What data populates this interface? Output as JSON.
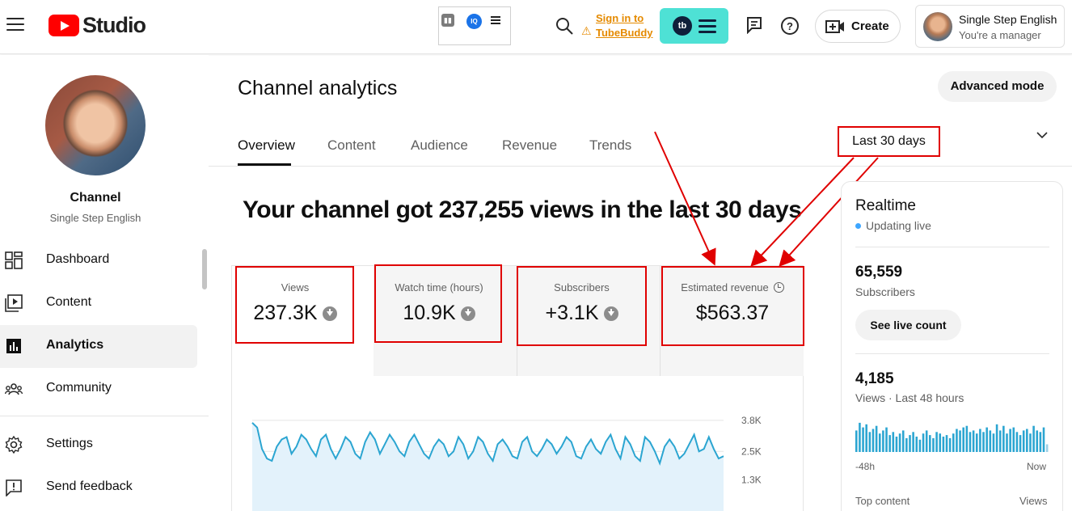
{
  "header": {
    "app_name": "Studio",
    "tubebuddy_sign_line1": "Sign in to",
    "tubebuddy_sign_line2": "TubeBuddy",
    "tubebuddy_logo_text": "tb",
    "extension_badge": "IQ",
    "create_label": "Create",
    "account_name": "Single Step English",
    "account_role": "You're a manager"
  },
  "sidebar": {
    "channel_title": "Channel",
    "channel_name": "Single Step English",
    "items": [
      {
        "label": "Dashboard",
        "icon": "dashboard-icon"
      },
      {
        "label": "Content",
        "icon": "content-icon"
      },
      {
        "label": "Analytics",
        "icon": "analytics-icon",
        "active": true
      },
      {
        "label": "Community",
        "icon": "community-icon"
      }
    ],
    "bottom_items": [
      {
        "label": "Settings",
        "icon": "gear-icon"
      },
      {
        "label": "Send feedback",
        "icon": "feedback-icon"
      }
    ]
  },
  "main": {
    "title": "Channel analytics",
    "advanced_mode": "Advanced mode",
    "tabs": [
      "Overview",
      "Content",
      "Audience",
      "Revenue",
      "Trends"
    ],
    "period": "Last 30 days",
    "headline": "Your channel got 237,255 views in the last 30 days",
    "metrics": [
      {
        "label": "Views",
        "value": "237.3K"
      },
      {
        "label": "Watch time (hours)",
        "value": "10.9K"
      },
      {
        "label": "Subscribers",
        "value": "+3.1K"
      },
      {
        "label": "Estimated revenue",
        "value": "$563.37"
      }
    ]
  },
  "chart_data": {
    "type": "area",
    "yticks": [
      "3.8K",
      "2.5K",
      "1.3K"
    ],
    "ylim": [
      0,
      4000
    ],
    "values": [
      3700,
      3500,
      2600,
      2200,
      2100,
      2700,
      3000,
      3100,
      2400,
      2700,
      3200,
      3000,
      2600,
      2300,
      3000,
      3200,
      2600,
      2200,
      2600,
      3100,
      2900,
      2400,
      2200,
      2900,
      3300,
      3000,
      2400,
      2800,
      3200,
      2900,
      2500,
      2300,
      2900,
      3200,
      2800,
      2400,
      2200,
      2700,
      3000,
      2800,
      2300,
      2500,
      3100,
      2800,
      2200,
      2500,
      3100,
      2900,
      2400,
      2100,
      2800,
      3000,
      2700,
      2300,
      2200,
      2900,
      3100,
      2500,
      2300,
      2600,
      3000,
      2800,
      2400,
      2700,
      3100,
      2900,
      2300,
      2200,
      2700,
      3000,
      2600,
      2400,
      2900,
      3200,
      2600,
      2200,
      3100,
      2800,
      2300,
      2100,
      3100,
      2900,
      2500,
      2000,
      2700,
      3000,
      2700,
      2200,
      2400,
      2800,
      3200,
      2500,
      2600,
      3100,
      2600,
      2200,
      2300
    ]
  },
  "realtime": {
    "title": "Realtime",
    "status": "Updating live",
    "subscribers_value": "65,559",
    "subscribers_label": "Subscribers",
    "live_count_button": "See live count",
    "views_value": "4,185",
    "views_label": "Views · Last 48 hours",
    "axis_start": "-48h",
    "axis_end": "Now",
    "top_content": "Top content",
    "top_content_col": "Views",
    "bars": [
      70,
      95,
      80,
      90,
      65,
      75,
      85,
      60,
      70,
      80,
      55,
      65,
      50,
      60,
      70,
      45,
      55,
      65,
      50,
      40,
      60,
      70,
      55,
      45,
      65,
      60,
      50,
      55,
      45,
      60,
      75,
      70,
      80,
      85,
      65,
      70,
      60,
      75,
      65,
      80,
      70,
      60,
      90,
      70,
      85,
      60,
      75,
      80,
      65,
      55,
      70,
      75,
      60,
      85,
      70,
      65,
      80,
      25
    ]
  }
}
